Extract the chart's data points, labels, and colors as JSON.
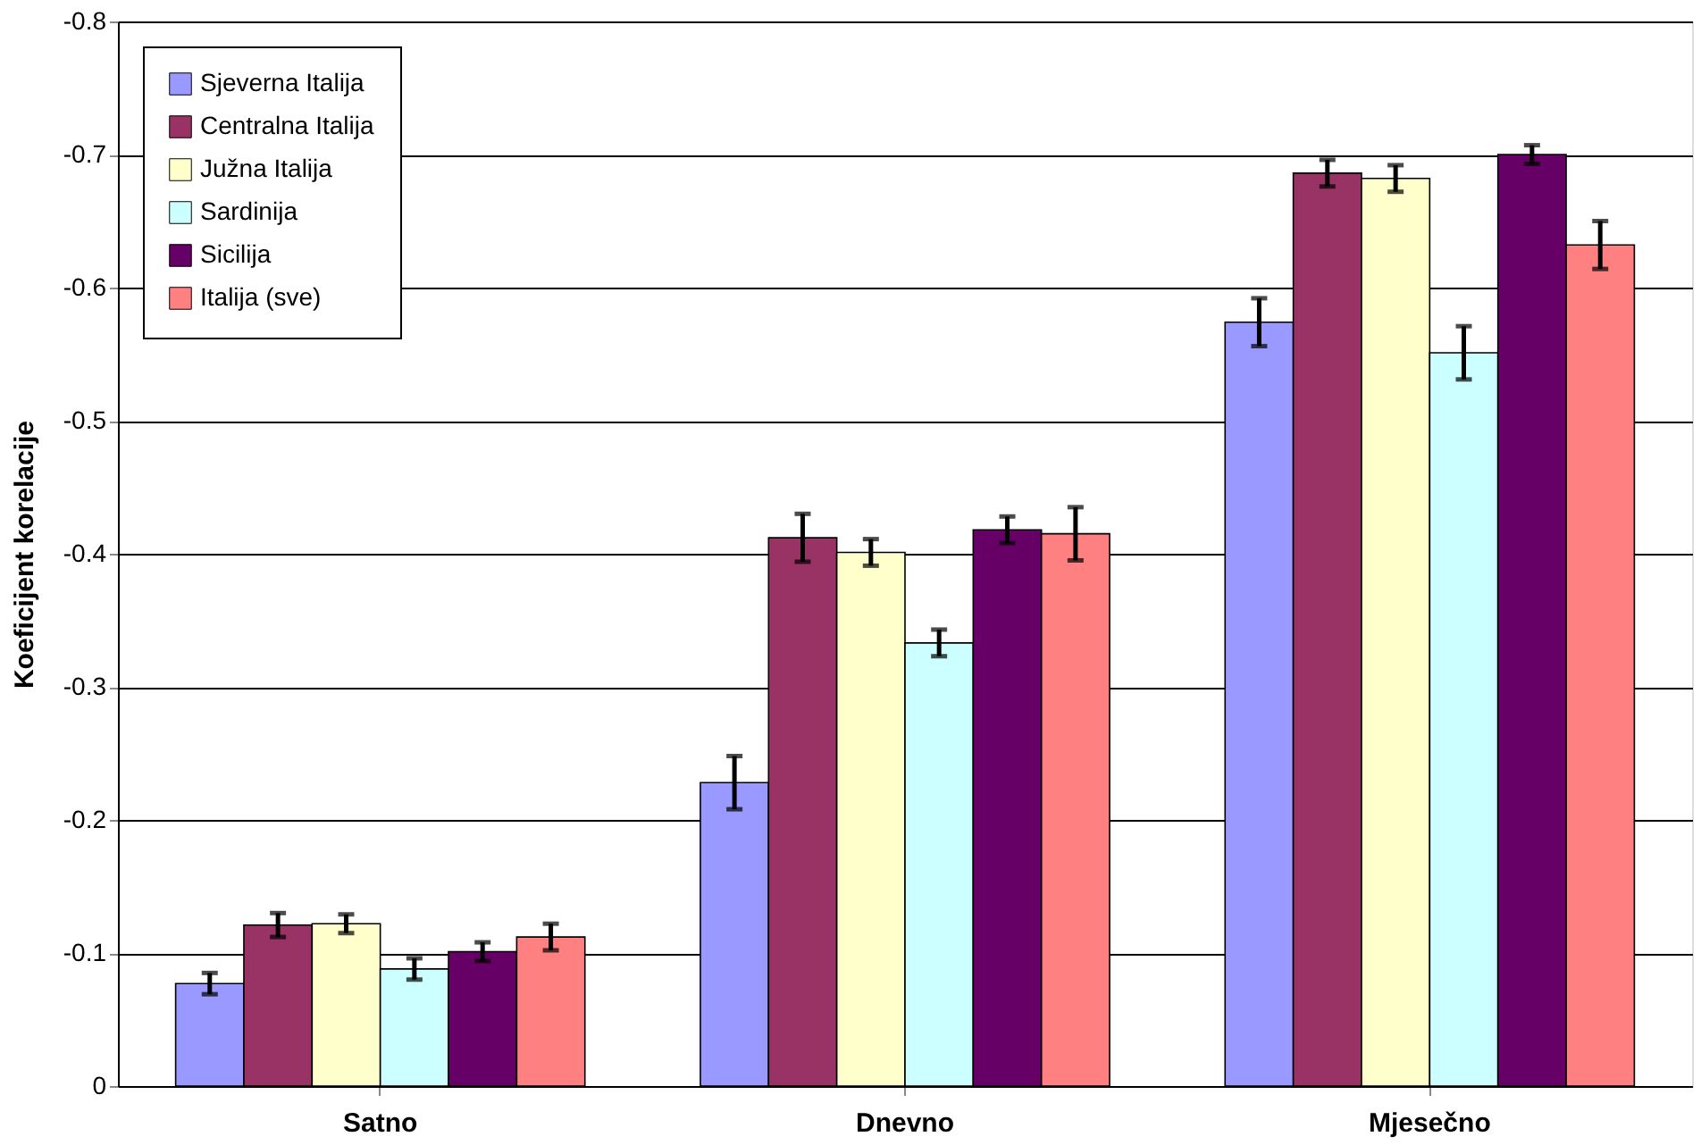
{
  "chart_data": {
    "type": "bar",
    "ylabel": "Koeficijent korelacije",
    "categories": [
      "Satno",
      "Dnevno",
      "Mjesečno"
    ],
    "series": [
      {
        "name": "Sjeverna Italija",
        "color": "#9999ff",
        "values": [
          -0.077,
          -0.228,
          -0.574
        ],
        "errors": [
          0.008,
          0.02,
          0.018
        ]
      },
      {
        "name": "Centralna Italija",
        "color": "#993366",
        "values": [
          -0.121,
          -0.412,
          -0.686
        ],
        "errors": [
          0.009,
          0.018,
          0.01
        ]
      },
      {
        "name": "Južna Italija",
        "color": "#ffffcc",
        "values": [
          -0.122,
          -0.401,
          -0.682
        ],
        "errors": [
          0.007,
          0.01,
          0.01
        ]
      },
      {
        "name": "Sardinija",
        "color": "#ccffff",
        "values": [
          -0.088,
          -0.333,
          -0.551
        ],
        "errors": [
          0.008,
          0.01,
          0.02
        ]
      },
      {
        "name": "Sicilija",
        "color": "#660066",
        "values": [
          -0.101,
          -0.418,
          -0.7
        ],
        "errors": [
          0.007,
          0.01,
          0.007
        ]
      },
      {
        "name": "Italija (sve)",
        "color": "#ff8080",
        "values": [
          -0.112,
          -0.415,
          -0.632
        ],
        "errors": [
          0.01,
          0.02,
          0.018
        ]
      }
    ],
    "ylim": [
      0,
      -0.8
    ],
    "yticks": [
      0,
      -0.1,
      -0.2,
      -0.3,
      -0.4,
      -0.5,
      -0.6,
      -0.7,
      -0.8
    ],
    "grid": "y",
    "legend": "top left"
  }
}
